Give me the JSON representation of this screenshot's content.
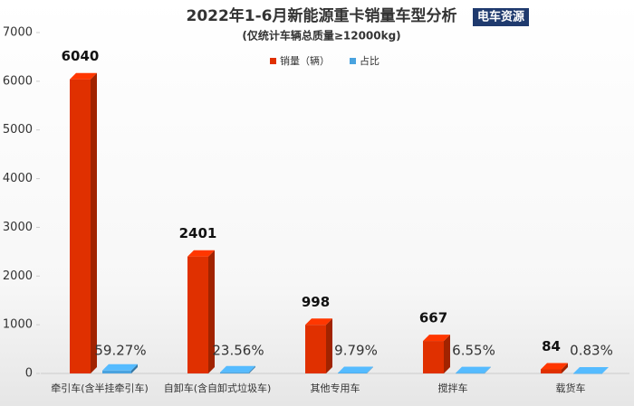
{
  "chart_data": {
    "type": "bar",
    "title": "2022年1-6月新能源重卡销量车型分析",
    "subtitle": "(仅统计车辆总质量≥12000kg)",
    "logo": "电车资源",
    "categories": [
      "牵引车(含半挂牵引车)",
      "自卸车(含自卸式垃圾车)",
      "其他专用车",
      "搅拌车",
      "载货车"
    ],
    "series": [
      {
        "name": "销量（辆）",
        "color": "#e03000",
        "values": [
          6040,
          2401,
          998,
          667,
          84
        ]
      },
      {
        "name": "占比",
        "color": "#4aa3df",
        "values": [
          59.27,
          23.56,
          9.79,
          6.55,
          0.83
        ],
        "value_labels": [
          "59.27%",
          "23.56%",
          "9.79%",
          "6.55%",
          "0.83%"
        ]
      }
    ],
    "ylim": [
      0,
      7000
    ],
    "yticks": [
      0,
      1000,
      2000,
      3000,
      4000,
      5000,
      6000,
      7000
    ],
    "legend": "top"
  }
}
